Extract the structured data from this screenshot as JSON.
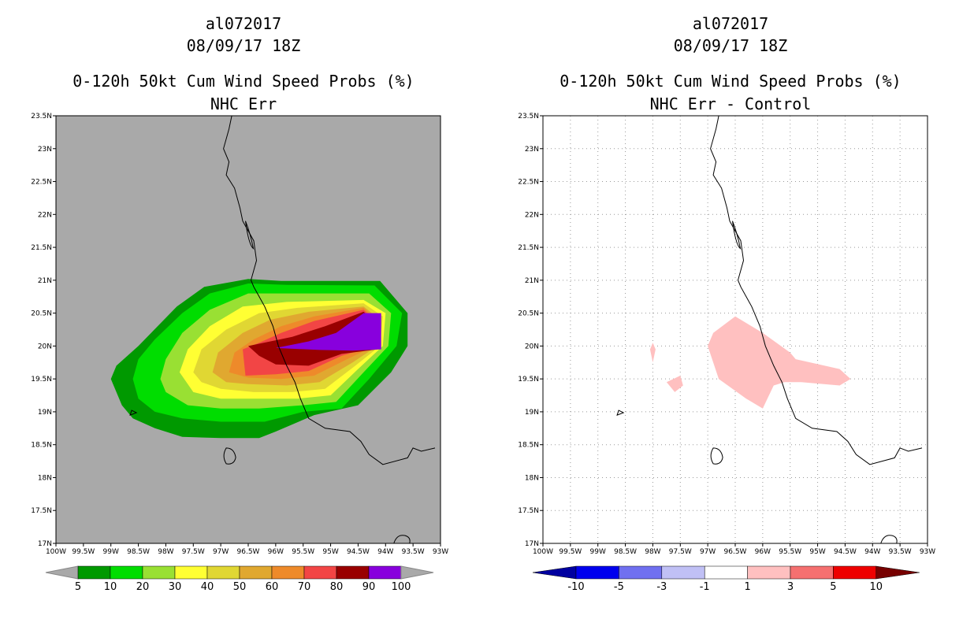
{
  "panels": [
    {
      "id": "left",
      "title_line1": "al072017",
      "title_line2": "08/09/17 18Z",
      "title_line3": "0-120h 50kt Cum Wind Speed Probs (%)",
      "title_line4": "NHC Err",
      "background": "#a9a9a9",
      "lat_ticks": [
        "17N",
        "17.5N",
        "18N",
        "18.5N",
        "19N",
        "19.5N",
        "20N",
        "20.5N",
        "21N",
        "21.5N",
        "22N",
        "22.5N",
        "23N",
        "23.5N"
      ],
      "lon_ticks": [
        "100W",
        "99.5W",
        "99W",
        "98.5W",
        "98W",
        "97.5W",
        "97W",
        "96.5W",
        "96W",
        "95.5W",
        "95W",
        "94.5W",
        "94W",
        "93.5W",
        "93W"
      ],
      "colorbar": {
        "labels": [
          "5",
          "10",
          "20",
          "30",
          "40",
          "50",
          "60",
          "70",
          "80",
          "90",
          "100"
        ],
        "colors": [
          "#009900",
          "#00dd00",
          "#99e033",
          "#ffff33",
          "#e0d733",
          "#e0a830",
          "#ee8a2a",
          "#f24545",
          "#990000",
          "#8800dd"
        ],
        "end_color": "#a9a9a9"
      }
    },
    {
      "id": "right",
      "title_line1": "al072017",
      "title_line2": "08/09/17 18Z",
      "title_line3": "0-120h 50kt Cum Wind Speed Probs (%)",
      "title_line4": "NHC Err - Control",
      "background": "#ffffff",
      "lat_ticks": [
        "17N",
        "17.5N",
        "18N",
        "18.5N",
        "19N",
        "19.5N",
        "20N",
        "20.5N",
        "21N",
        "21.5N",
        "22N",
        "22.5N",
        "23N",
        "23.5N"
      ],
      "lon_ticks": [
        "100W",
        "99.5W",
        "99W",
        "98.5W",
        "98W",
        "97.5W",
        "97W",
        "96.5W",
        "96W",
        "95.5W",
        "95W",
        "94.5W",
        "94W",
        "93.5W",
        "93W"
      ],
      "colorbar": {
        "labels": [
          "-10",
          "-5",
          "-3",
          "-1",
          "1",
          "3",
          "5",
          "10"
        ],
        "colors": [
          "#0000a0",
          "#0000ee",
          "#7070f0",
          "#c0c0f5",
          "#ffffff",
          "#ffc0c0",
          "#f57070",
          "#ee0000",
          "#990000"
        ],
        "left_end_color": "#0000a0",
        "right_end_color": "#770000"
      }
    }
  ],
  "chart_data": [
    {
      "type": "contour-map",
      "title": "0-120h 50kt Cum Wind Speed Probs (%) — NHC Err",
      "storm": "al072017",
      "valid": "08/09/17 18Z",
      "lon_range_w": [
        100,
        93
      ],
      "lat_range_n": [
        17,
        23.5
      ],
      "levels": [
        5,
        10,
        20,
        30,
        40,
        50,
        60,
        70,
        80,
        90,
        100
      ],
      "contours": [
        {
          "level": 5,
          "poly": [
            [
              99,
              19.5
            ],
            [
              98.9,
              19.7
            ],
            [
              98.5,
              20.0
            ],
            [
              97.8,
              20.6
            ],
            [
              97.3,
              20.9
            ],
            [
              96.5,
              21.02
            ],
            [
              95.9,
              20.99
            ],
            [
              94.1,
              20.99
            ],
            [
              93.6,
              20.5
            ],
            [
              93.6,
              20.0
            ],
            [
              93.9,
              19.6
            ],
            [
              94.5,
              19.1
            ],
            [
              95.3,
              18.95
            ],
            [
              96.0,
              18.7
            ],
            [
              96.3,
              18.6
            ],
            [
              97.0,
              18.6
            ],
            [
              97.7,
              18.62
            ],
            [
              98.2,
              18.75
            ],
            [
              98.6,
              18.9
            ],
            [
              98.8,
              19.1
            ]
          ]
        },
        {
          "level": 10,
          "poly": [
            [
              98.6,
              19.5
            ],
            [
              98.5,
              19.8
            ],
            [
              98.2,
              20.1
            ],
            [
              97.7,
              20.5
            ],
            [
              97.2,
              20.8
            ],
            [
              96.5,
              20.95
            ],
            [
              95.8,
              20.93
            ],
            [
              94.2,
              20.92
            ],
            [
              93.7,
              20.5
            ],
            [
              93.8,
              20.0
            ],
            [
              94.3,
              19.5
            ],
            [
              94.8,
              19.05
            ],
            [
              95.5,
              19.0
            ],
            [
              96.2,
              18.85
            ],
            [
              97.0,
              18.85
            ],
            [
              97.7,
              18.9
            ],
            [
              98.2,
              19.0
            ],
            [
              98.5,
              19.2
            ]
          ]
        },
        {
          "level": 20,
          "poly": [
            [
              98.1,
              19.5
            ],
            [
              98.0,
              19.8
            ],
            [
              97.7,
              20.2
            ],
            [
              97.2,
              20.55
            ],
            [
              96.5,
              20.8
            ],
            [
              95.8,
              20.8
            ],
            [
              94.3,
              20.8
            ],
            [
              93.9,
              20.5
            ],
            [
              93.95,
              20.0
            ],
            [
              94.4,
              19.6
            ],
            [
              94.9,
              19.15
            ],
            [
              95.5,
              19.1
            ],
            [
              96.3,
              19.05
            ],
            [
              97.0,
              19.05
            ],
            [
              97.6,
              19.1
            ],
            [
              98.0,
              19.3
            ]
          ]
        },
        {
          "level": 30,
          "poly": [
            [
              97.75,
              19.6
            ],
            [
              97.6,
              19.95
            ],
            [
              97.2,
              20.3
            ],
            [
              96.6,
              20.6
            ],
            [
              95.8,
              20.67
            ],
            [
              94.4,
              20.7
            ],
            [
              94.0,
              20.5
            ],
            [
              94.05,
              20.0
            ],
            [
              94.5,
              19.65
            ],
            [
              95.0,
              19.25
            ],
            [
              95.6,
              19.2
            ],
            [
              96.3,
              19.2
            ],
            [
              97.0,
              19.2
            ],
            [
              97.5,
              19.3
            ]
          ]
        },
        {
          "level": 40,
          "poly": [
            [
              97.5,
              19.6
            ],
            [
              97.35,
              19.95
            ],
            [
              96.9,
              20.25
            ],
            [
              96.3,
              20.5
            ],
            [
              95.6,
              20.58
            ],
            [
              94.4,
              20.65
            ],
            [
              94.05,
              20.45
            ],
            [
              94.1,
              20.0
            ],
            [
              94.55,
              19.7
            ],
            [
              95.1,
              19.35
            ],
            [
              95.7,
              19.3
            ],
            [
              96.4,
              19.3
            ],
            [
              97.0,
              19.35
            ],
            [
              97.35,
              19.45
            ]
          ]
        },
        {
          "level": 50,
          "poly": [
            [
              97.15,
              19.6
            ],
            [
              97.05,
              19.9
            ],
            [
              96.6,
              20.2
            ],
            [
              96.1,
              20.4
            ],
            [
              95.4,
              20.52
            ],
            [
              94.4,
              20.6
            ],
            [
              94.1,
              20.4
            ],
            [
              94.15,
              20.0
            ],
            [
              94.6,
              19.75
            ],
            [
              95.2,
              19.45
            ],
            [
              95.8,
              19.4
            ],
            [
              96.5,
              19.42
            ],
            [
              96.9,
              19.45
            ]
          ]
        },
        {
          "level": 60,
          "poly": [
            [
              96.85,
              19.6
            ],
            [
              96.75,
              19.9
            ],
            [
              96.4,
              20.1
            ],
            [
              95.9,
              20.3
            ],
            [
              95.3,
              20.45
            ],
            [
              94.4,
              20.58
            ],
            [
              94.12,
              20.35
            ],
            [
              94.2,
              20.0
            ],
            [
              94.7,
              19.8
            ],
            [
              95.3,
              19.55
            ],
            [
              95.9,
              19.5
            ],
            [
              96.5,
              19.52
            ]
          ]
        },
        {
          "level": 70,
          "poly": [
            [
              96.55,
              19.55
            ],
            [
              96.6,
              19.95
            ],
            [
              96.3,
              20.05
            ],
            [
              95.9,
              20.2
            ],
            [
              95.3,
              20.38
            ],
            [
              94.4,
              20.55
            ],
            [
              94.1,
              20.3
            ],
            [
              94.2,
              20.0
            ],
            [
              94.8,
              19.85
            ],
            [
              95.4,
              19.62
            ],
            [
              96.0,
              19.57
            ]
          ]
        },
        {
          "level": 80,
          "poly": [
            [
              96.5,
              20.0
            ],
            [
              95.7,
              20.14
            ],
            [
              95.1,
              20.3
            ],
            [
              94.4,
              20.52
            ],
            [
              94.1,
              20.3
            ],
            [
              94.15,
              19.95
            ],
            [
              94.8,
              19.88
            ],
            [
              95.4,
              19.7
            ],
            [
              96.0,
              19.72
            ],
            [
              96.3,
              19.85
            ]
          ]
        },
        {
          "level": 90,
          "poly": [
            [
              96.0,
              19.97
            ],
            [
              95.4,
              20.07
            ],
            [
              94.9,
              20.2
            ],
            [
              94.4,
              20.5
            ],
            [
              94.08,
              20.5
            ],
            [
              94.08,
              19.95
            ],
            [
              94.6,
              19.93
            ],
            [
              95.2,
              19.94
            ]
          ]
        }
      ]
    },
    {
      "type": "contour-map",
      "title": "0-120h 50kt Cum Wind Speed Probs (%) — NHC Err - Control",
      "storm": "al072017",
      "valid": "08/09/17 18Z",
      "lon_range_w": [
        100,
        93
      ],
      "lat_range_n": [
        17,
        23.5
      ],
      "levels": [
        -10,
        -5,
        -3,
        -1,
        1,
        3,
        5,
        10
      ],
      "contours": [
        {
          "level": 1,
          "poly": [
            [
              97.0,
              20.0
            ],
            [
              96.9,
              20.2
            ],
            [
              96.5,
              20.45
            ],
            [
              96.0,
              20.2
            ],
            [
              95.5,
              19.9
            ],
            [
              95.4,
              19.8
            ],
            [
              94.6,
              19.65
            ],
            [
              94.4,
              19.5
            ],
            [
              94.6,
              19.4
            ],
            [
              95.3,
              19.45
            ],
            [
              95.6,
              19.45
            ],
            [
              95.8,
              19.4
            ],
            [
              96.0,
              19.05
            ],
            [
              96.3,
              19.2
            ],
            [
              96.8,
              19.5
            ]
          ]
        },
        {
          "level": 1,
          "poly": [
            [
              98.0,
              19.75
            ],
            [
              98.05,
              19.95
            ],
            [
              98.0,
              20.05
            ],
            [
              97.95,
              19.95
            ]
          ]
        },
        {
          "level": 1,
          "poly": [
            [
              97.75,
              19.45
            ],
            [
              97.5,
              19.55
            ],
            [
              97.45,
              19.4
            ],
            [
              97.6,
              19.3
            ]
          ]
        }
      ]
    }
  ],
  "coastline": [
    [
      96.8,
      23.5
    ],
    [
      96.85,
      23.3
    ],
    [
      96.95,
      23.0
    ],
    [
      96.85,
      22.8
    ],
    [
      96.9,
      22.6
    ],
    [
      96.75,
      22.4
    ],
    [
      96.65,
      22.1
    ],
    [
      96.6,
      21.9
    ],
    [
      96.4,
      21.6
    ],
    [
      96.35,
      21.3
    ],
    [
      96.45,
      21.0
    ],
    [
      96.4,
      20.9
    ],
    [
      96.2,
      20.6
    ],
    [
      96.05,
      20.3
    ],
    [
      95.95,
      20.0
    ],
    [
      95.8,
      19.7
    ],
    [
      95.65,
      19.45
    ],
    [
      95.55,
      19.2
    ],
    [
      95.4,
      18.9
    ],
    [
      95.1,
      18.75
    ],
    [
      94.65,
      18.7
    ],
    [
      94.45,
      18.55
    ],
    [
      94.3,
      18.35
    ],
    [
      94.05,
      18.2
    ],
    [
      93.6,
      18.3
    ],
    [
      93.5,
      18.45
    ],
    [
      93.35,
      18.4
    ],
    [
      93.1,
      18.45
    ]
  ]
}
